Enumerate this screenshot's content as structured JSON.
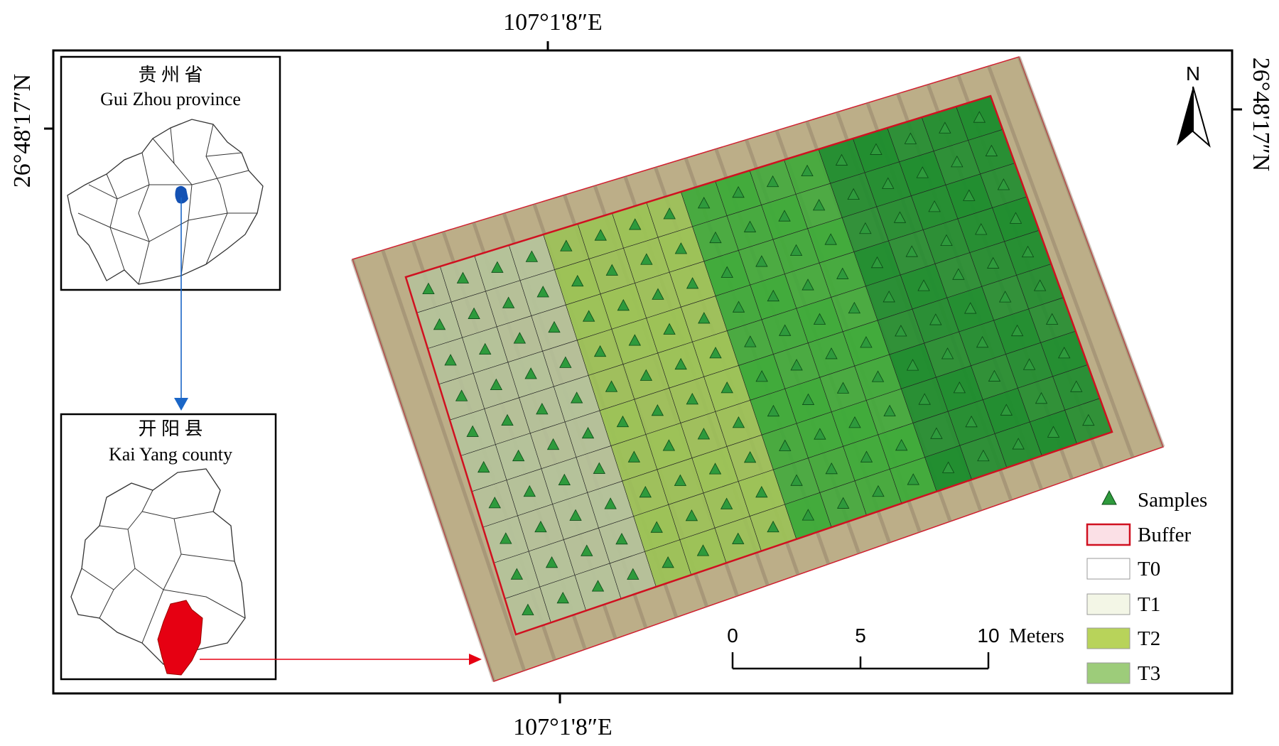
{
  "coordinates": {
    "top": "107°1'8″E",
    "bottom": "107°1'8″E",
    "left": "26°48'17″N",
    "right": "26°48'17″N"
  },
  "insets": [
    {
      "title_cn": "贵 州 省",
      "title_en": "Gui Zhou province"
    },
    {
      "title_cn": "开 阳 县",
      "title_en": "Kai Yang county"
    }
  ],
  "north": "N",
  "scale_bar": {
    "labels": [
      "0",
      "5",
      "10"
    ],
    "unit": "Meters"
  },
  "legend": [
    {
      "label": "Samples",
      "color": "#2e9a3c"
    },
    {
      "label": "Buffer",
      "color": "#fbe0e6"
    },
    {
      "label": "T0",
      "color": "#ffffff"
    },
    {
      "label": "T1",
      "color": "#f3f6e6"
    },
    {
      "label": "T2",
      "color": "#b8d35a"
    },
    {
      "label": "T3",
      "color": "#9dcc7a"
    }
  ]
}
